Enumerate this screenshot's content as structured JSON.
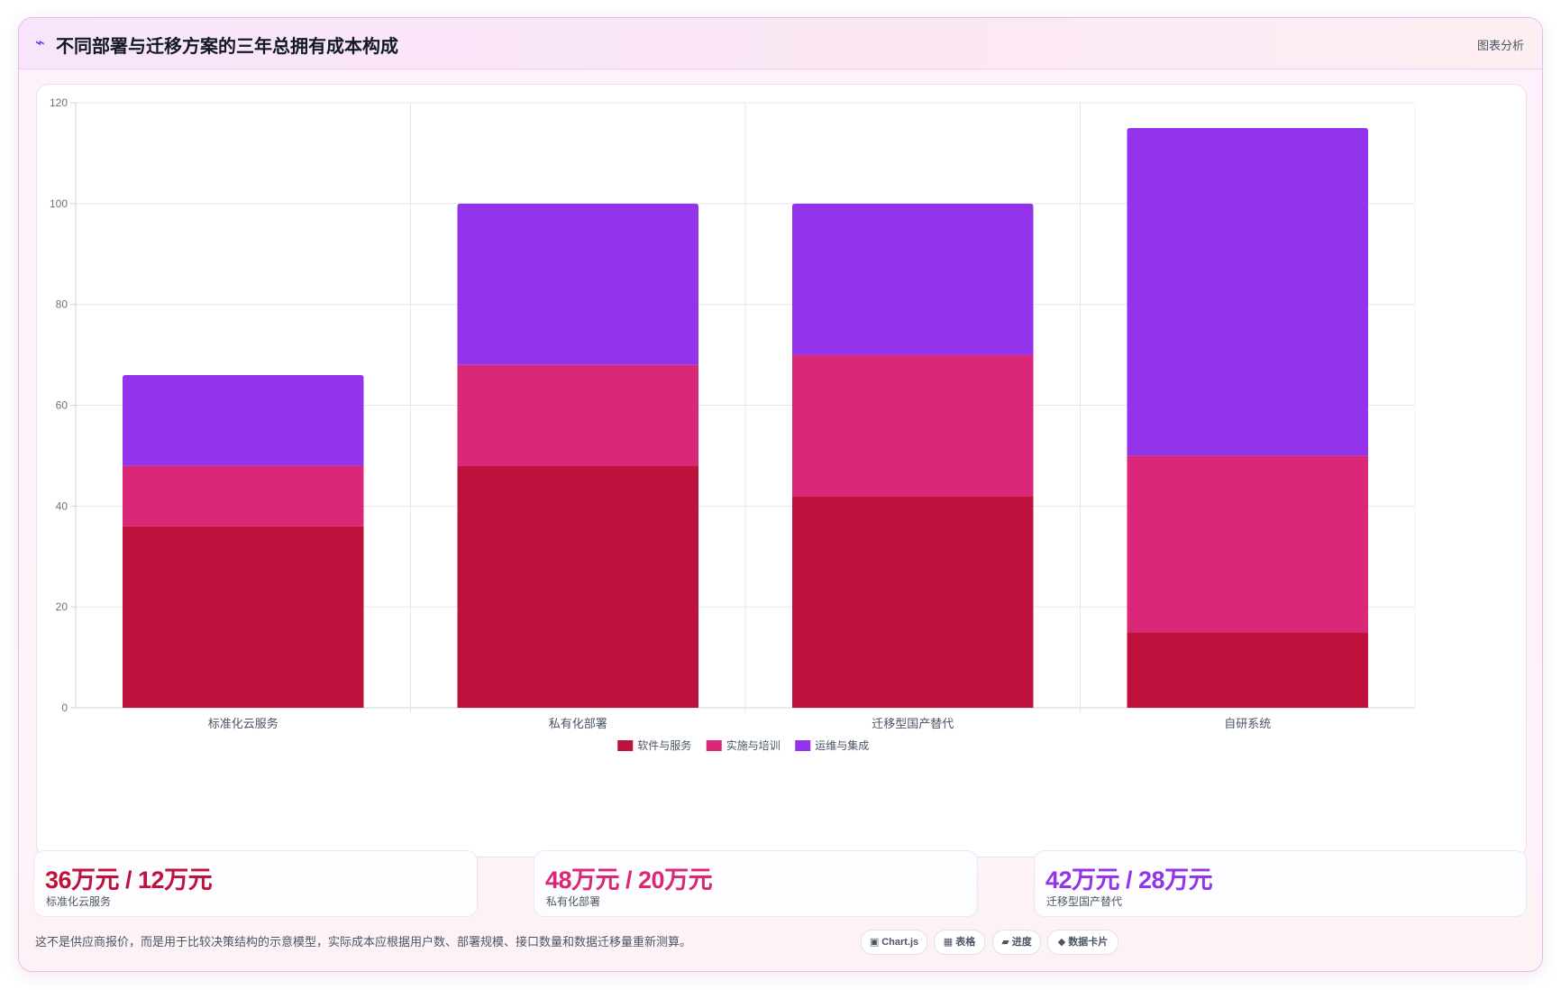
{
  "header": {
    "icon": "lightning-icon",
    "icon_glyph": "⌁",
    "title": "不同部署与迁移方案的三年总拥有成本构成",
    "tag": "图表分析"
  },
  "chart_data": {
    "type": "bar",
    "stacked": true,
    "categories": [
      "标准化云服务",
      "私有化部署",
      "迁移型国产替代",
      "自研系统"
    ],
    "series": [
      {
        "name": "软件与服务",
        "color": "#be123c",
        "values": [
          36,
          48,
          42,
          15
        ]
      },
      {
        "name": "实施与培训",
        "color": "#db2777",
        "values": [
          12,
          20,
          28,
          35
        ]
      },
      {
        "name": "运维与集成",
        "color": "#9333ea",
        "values": [
          18,
          32,
          30,
          65
        ]
      }
    ],
    "ylim": [
      0,
      120
    ],
    "yticks": [
      0,
      20,
      40,
      60,
      80,
      100,
      120
    ],
    "grid": true,
    "legend": "bottom"
  },
  "stats": [
    {
      "value": "36万元 / 12万元",
      "label": "标准化云服务",
      "color": "#be123c"
    },
    {
      "value": "48万元 / 20万元",
      "label": "私有化部署",
      "color": "#db2777"
    },
    {
      "value": "42万元 / 28万元",
      "label": "迁移型国产替代",
      "color": "#9333ea"
    }
  ],
  "footnote": "这不是供应商报价，而是用于比较决策结构的示意模型，实际成本应根据用户数、部署规模、接口数量和数据迁移量重新测算。",
  "pills": [
    {
      "icon": "chart-icon",
      "glyph": "▣",
      "label": "Chart.js"
    },
    {
      "icon": "table-icon",
      "glyph": "▦",
      "label": "表格"
    },
    {
      "icon": "progress-icon",
      "glyph": "▰",
      "label": "进度"
    },
    {
      "icon": "datacard-icon",
      "glyph": "◆",
      "label": "数据卡片"
    }
  ]
}
